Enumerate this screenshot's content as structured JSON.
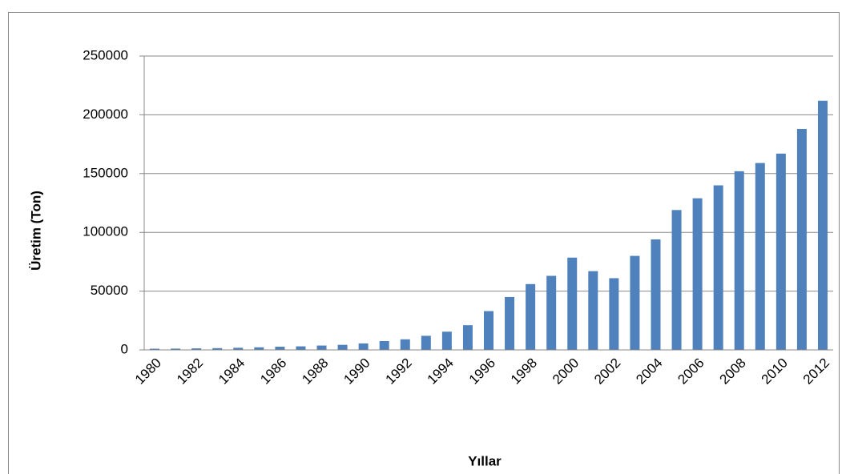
{
  "chart_data": {
    "type": "bar",
    "x_label": "Yıllar",
    "y_label": "Üretim (Ton)",
    "categories": [
      "1980",
      null,
      "1982",
      null,
      "1984",
      null,
      "1986",
      null,
      "1988",
      null,
      "1990",
      null,
      "1992",
      null,
      "1994",
      null,
      "1996",
      null,
      "1998",
      null,
      "2000",
      null,
      "2002",
      null,
      "2004",
      null,
      "2006",
      null,
      "2008",
      null,
      "2010",
      null,
      "2012"
    ],
    "values": [
      1000,
      1100,
      1300,
      1500,
      1800,
      2200,
      2700,
      3000,
      3700,
      4300,
      5500,
      7500,
      9000,
      12000,
      15500,
      21000,
      33000,
      45000,
      56000,
      63000,
      78500,
      67000,
      61000,
      80000,
      94000,
      119000,
      129000,
      140000,
      152000,
      159000,
      167000,
      188000,
      212000
    ],
    "color": "#4f81bd",
    "ylim": [
      0,
      250000
    ],
    "yticks": [
      0,
      50000,
      100000,
      150000,
      200000,
      250000
    ],
    "grid": true
  }
}
